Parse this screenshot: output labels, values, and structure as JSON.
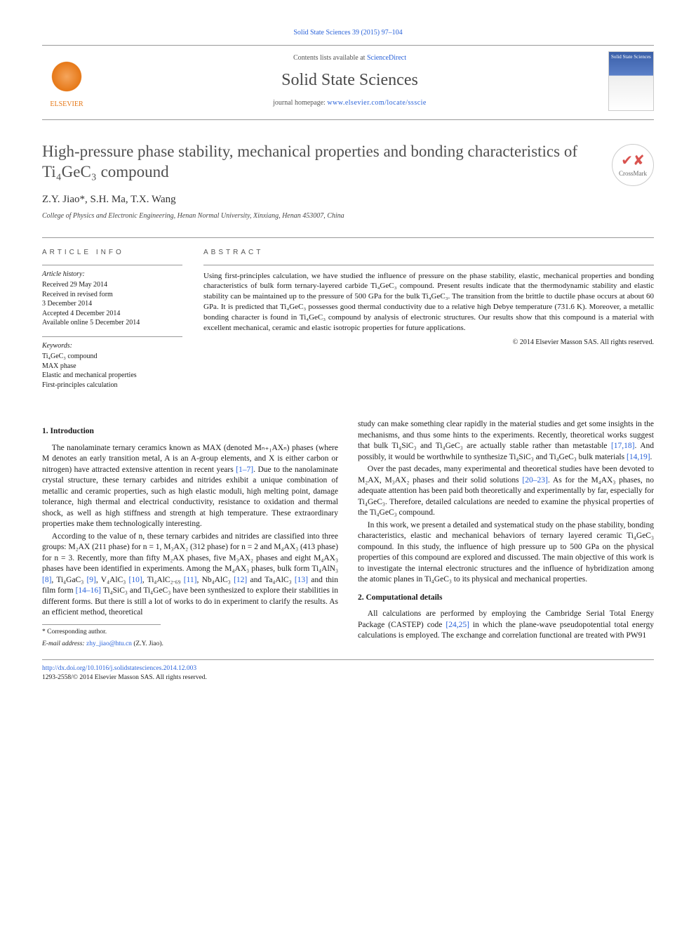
{
  "citation": "Solid State Sciences 39 (2015) 97–104",
  "header": {
    "contents_prefix": "Contents lists available at ",
    "contents_link": "ScienceDirect",
    "journal": "Solid State Sciences",
    "homepage_prefix": "journal homepage: ",
    "homepage_url": "www.elsevier.com/locate/ssscie",
    "publisher": "ELSEVIER",
    "cover_text": "Solid State Sciences"
  },
  "title": "High-pressure phase stability, mechanical properties and bonding characteristics of Ti₄GeC₃ compound",
  "crossmark": "CrossMark",
  "authors": "Z.Y. Jiao*, S.H. Ma, T.X. Wang",
  "affiliation": "College of Physics and Electronic Engineering, Henan Normal University, Xinxiang, Henan 453007, China",
  "info": {
    "heading": "ARTICLE INFO",
    "history_label": "Article history:",
    "history": [
      "Received 29 May 2014",
      "Received in revised form",
      "3 December 2014",
      "Accepted 4 December 2014",
      "Available online 5 December 2014"
    ],
    "keywords_label": "Keywords:",
    "keywords": [
      "Ti₄GeC₃ compound",
      "MAX phase",
      "Elastic and mechanical properties",
      "First-principles calculation"
    ]
  },
  "abstract": {
    "heading": "ABSTRACT",
    "text": "Using first-principles calculation, we have studied the influence of pressure on the phase stability, elastic, mechanical properties and bonding characteristics of bulk form ternary-layered carbide Ti₄GeC₃ compound. Present results indicate that the thermodynamic stability and elastic stability can be maintained up to the pressure of 500 GPa for the bulk Ti₄GeC₃. The transition from the brittle to ductile phase occurs at about 60 GPa. It is predicted that Ti₄GeC₃ possesses good thermal conductivity due to a relative high Debye temperature (731.6 K). Moreover, a metallic bonding character is found in Ti₄GeC₃ compound by analysis of electronic structures. Our results show that this compound is a material with excellent mechanical, ceramic and elastic isotropic properties for future applications.",
    "copyright": "© 2014 Elsevier Masson SAS. All rights reserved."
  },
  "sections": {
    "s1_heading": "1. Introduction",
    "s1_p1": "The nanolaminate ternary ceramics known as MAX (denoted Mₙ₊₁AXₙ) phases (where M denotes an early transition metal, A is an A-group elements, and X is either carbon or nitrogen) have attracted extensive attention in recent years [1–7]. Due to the nanolaminate crystal structure, these ternary carbides and nitrides exhibit a unique combination of metallic and ceramic properties, such as high elastic moduli, high melting point, damage tolerance, high thermal and electrical conductivity, resistance to oxidation and thermal shock, as well as high stiffness and strength at high temperature. These extraordinary properties make them technologically interesting.",
    "s1_p2": "According to the value of n, these ternary carbides and nitrides are classified into three groups: M₂AX (211 phase) for n = 1, M₃AX₂ (312 phase) for n = 2 and M₄AX₃ (413 phase) for n = 3. Recently, more than fifty M₂AX phases, five M₃AX₂ phases and eight M₄AX₃ phases have been identified in experiments. Among the M₄AX₃ phases, bulk form Ti₄AlN₃ [8], Ti₄GaC₃ [9], V₄AlC₃ [10], Ti₄AlC₂.₆₉ [11], Nb₄AlC₃ [12] and Ta₄AlC₃ [13] and thin film form [14–16] Ti₄SiC₃ and Ti₄GeC₃ have been synthesized to explore their stabilities in different forms. But there is still a lot of works to do in experiment to clarify the results. As an efficient method, theoretical",
    "s1_p3": "study can make something clear rapidly in the material studies and get some insights in the mechanisms, and thus some hints to the experiments. Recently, theoretical works suggest that bulk Ti₄SiC₃ and Ti₄GeC₃ are actually stable rather than metastable [17,18]. And possibly, it would be worthwhile to synthesize Ti₄SiC₃ and Ti₄GeC₃ bulk materials [14,19].",
    "s1_p4": "Over the past decades, many experimental and theoretical studies have been devoted to M₂AX, M₃AX₂ phases and their solid solutions [20–23]. As for the M₄AX₃ phases, no adequate attention has been paid both theoretically and experimentally by far, especially for Ti₄GeC₃. Therefore, detailed calculations are needed to examine the physical properties of the Ti₄GeC₃ compound.",
    "s1_p5": "In this work, we present a detailed and systematical study on the phase stability, bonding characteristics, elastic and mechanical behaviors of ternary layered ceramic Ti₄GeC₃ compound. In this study, the influence of high pressure up to 500 GPa on the physical properties of this compound are explored and discussed. The main objective of this work is to investigate the internal electronic structures and the influence of hybridization among the atomic planes in Ti₄GeC₃ to its physical and mechanical properties.",
    "s2_heading": "2. Computational details",
    "s2_p1": "All calculations are performed by employing the Cambridge Serial Total Energy Package (CASTEP) code [24,25] in which the plane-wave pseudopotential total energy calculations is employed. The exchange and correlation functional are treated with PW91"
  },
  "footer": {
    "corr_label": "* Corresponding author.",
    "email_label": "E-mail address: ",
    "email": "zhy_jiao@htu.cn",
    "email_who": " (Z.Y. Jiao).",
    "doi": "http://dx.doi.org/10.1016/j.solidstatesciences.2014.12.003",
    "issn_copy": "1293-2558/© 2014 Elsevier Masson SAS. All rights reserved."
  }
}
